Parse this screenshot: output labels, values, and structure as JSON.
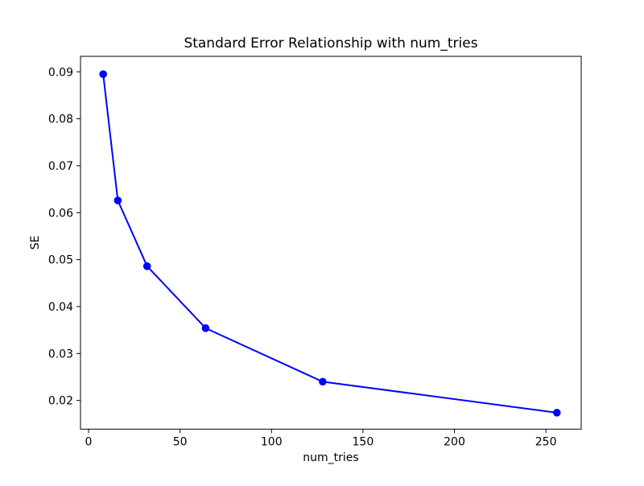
{
  "chart_data": {
    "type": "line",
    "title": "Standard Error Relationship with num_tries",
    "xlabel": "num_tries",
    "ylabel": "SE",
    "x": [
      8,
      16,
      32,
      64,
      128,
      256
    ],
    "y": [
      0.0895,
      0.0626,
      0.0486,
      0.0354,
      0.024,
      0.0174
    ],
    "xticks": [
      0,
      50,
      100,
      150,
      200,
      250
    ],
    "yticks": [
      0.02,
      0.03,
      0.04,
      0.05,
      0.06,
      0.07,
      0.08,
      0.09
    ],
    "ytick_decimals": 2,
    "xlim": [
      -4.4,
      269.3
    ],
    "ylim": [
      0.0139,
      0.0933
    ],
    "line_color": "#0000ff",
    "marker": "circle",
    "grid": false,
    "legend": null,
    "background_color": "#ffffff",
    "axis_color": "#000000"
  }
}
